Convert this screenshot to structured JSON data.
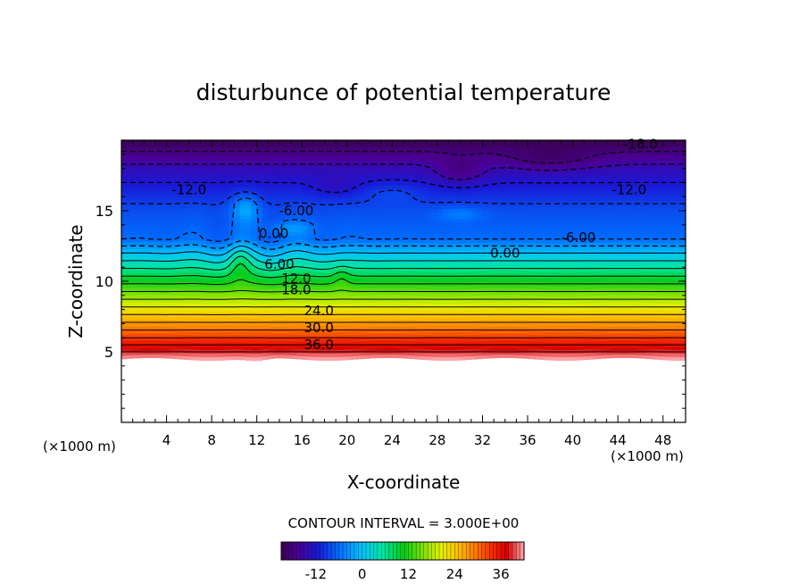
{
  "chart_data": {
    "type": "heatmap",
    "subtype": "filled-contour",
    "title": "disturbunce of potential temperature",
    "xlabel": "X-coordinate",
    "ylabel": "Z-coordinate",
    "x_unit": "(×1000 m)",
    "z_unit": "(×1000 m)",
    "xlim": [
      0,
      50
    ],
    "ylim": [
      0,
      20
    ],
    "x_ticks": [
      "4",
      "8",
      "12",
      "16",
      "20",
      "24",
      "28",
      "32",
      "36",
      "40",
      "44",
      "48"
    ],
    "x_tick_values": [
      4,
      8,
      12,
      16,
      20,
      24,
      28,
      32,
      36,
      40,
      44,
      48
    ],
    "y_ticks": [
      "5",
      "10",
      "15"
    ],
    "y_tick_values": [
      5,
      10,
      15
    ],
    "data_bottom_z": 4.5,
    "contour_interval_text": "CONTOUR INTERVAL = 3.000E+00",
    "contour_interval": 3,
    "colorbar": {
      "min": -21,
      "max": 42,
      "ticks": [
        "-12",
        "0",
        "12",
        "24",
        "36"
      ],
      "tick_values": [
        -12,
        0,
        12,
        24,
        36
      ]
    },
    "contour_labels": [
      {
        "text": "-12.0",
        "x": 6,
        "z": 16.5
      },
      {
        "text": "-12.0",
        "x": 45,
        "z": 16.5
      },
      {
        "text": "-18.0",
        "x": 46,
        "z": 19.7
      },
      {
        "text": "-6.00",
        "x": 15.5,
        "z": 15.0
      },
      {
        "text": "-6.00",
        "x": 40.5,
        "z": 13.1
      },
      {
        "text": "0.00",
        "x": 34,
        "z": 12.0
      },
      {
        "text": "0.00",
        "x": 13.5,
        "z": 13.4
      },
      {
        "text": "6.00",
        "x": 14,
        "z": 11.2
      },
      {
        "text": "12.0",
        "x": 15.5,
        "z": 10.2
      },
      {
        "text": "18.0",
        "x": 15.5,
        "z": 9.4
      },
      {
        "text": "24.0",
        "x": 17.5,
        "z": 7.9
      },
      {
        "text": "30.0",
        "x": 17.5,
        "z": 6.7
      },
      {
        "text": "36.0",
        "x": 17.5,
        "z": 5.5
      }
    ],
    "background_profile": [
      {
        "z": 4.5,
        "theta": 42
      },
      {
        "z": 5.0,
        "theta": 39
      },
      {
        "z": 6.0,
        "theta": 33
      },
      {
        "z": 7.0,
        "theta": 27.5
      },
      {
        "z": 8.0,
        "theta": 22
      },
      {
        "z": 9.0,
        "theta": 16.5
      },
      {
        "z": 10.0,
        "theta": 11
      },
      {
        "z": 11.0,
        "theta": 5.5
      },
      {
        "z": 12.0,
        "theta": 0
      },
      {
        "z": 13.0,
        "theta": -6
      },
      {
        "z": 15.0,
        "theta": -8
      },
      {
        "z": 16.5,
        "theta": -11
      },
      {
        "z": 18.0,
        "theta": -14
      },
      {
        "z": 19.2,
        "theta": -18
      },
      {
        "z": 20.0,
        "theta": -21
      }
    ]
  }
}
